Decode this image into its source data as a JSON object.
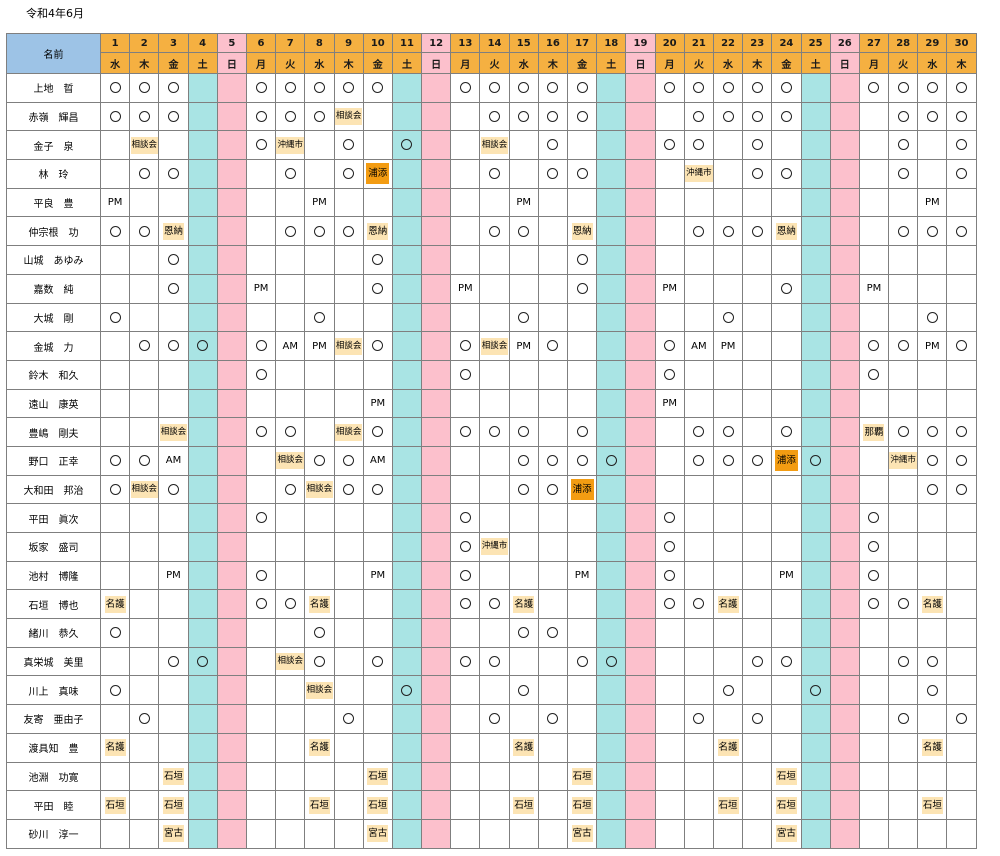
{
  "page_title": "令和4年6月",
  "header_label": "名前",
  "days": [
    {
      "n": "1",
      "w": "水",
      "t": "w"
    },
    {
      "n": "2",
      "w": "木",
      "t": "w"
    },
    {
      "n": "3",
      "w": "金",
      "t": "w"
    },
    {
      "n": "4",
      "w": "土",
      "t": "sat"
    },
    {
      "n": "5",
      "w": "日",
      "t": "sun"
    },
    {
      "n": "6",
      "w": "月",
      "t": "w"
    },
    {
      "n": "7",
      "w": "火",
      "t": "w"
    },
    {
      "n": "8",
      "w": "水",
      "t": "w"
    },
    {
      "n": "9",
      "w": "木",
      "t": "w"
    },
    {
      "n": "10",
      "w": "金",
      "t": "w"
    },
    {
      "n": "11",
      "w": "土",
      "t": "sat"
    },
    {
      "n": "12",
      "w": "日",
      "t": "sun"
    },
    {
      "n": "13",
      "w": "月",
      "t": "w"
    },
    {
      "n": "14",
      "w": "火",
      "t": "w"
    },
    {
      "n": "15",
      "w": "水",
      "t": "w"
    },
    {
      "n": "16",
      "w": "木",
      "t": "w"
    },
    {
      "n": "17",
      "w": "金",
      "t": "w"
    },
    {
      "n": "18",
      "w": "土",
      "t": "sat"
    },
    {
      "n": "19",
      "w": "日",
      "t": "sun"
    },
    {
      "n": "20",
      "w": "月",
      "t": "w"
    },
    {
      "n": "21",
      "w": "火",
      "t": "w"
    },
    {
      "n": "22",
      "w": "水",
      "t": "w"
    },
    {
      "n": "23",
      "w": "木",
      "t": "w"
    },
    {
      "n": "24",
      "w": "金",
      "t": "w"
    },
    {
      "n": "25",
      "w": "土",
      "t": "sat"
    },
    {
      "n": "26",
      "w": "日",
      "t": "sun"
    },
    {
      "n": "27",
      "w": "月",
      "t": "w"
    },
    {
      "n": "28",
      "w": "火",
      "t": "w"
    },
    {
      "n": "29",
      "w": "水",
      "t": "w"
    },
    {
      "n": "30",
      "w": "木",
      "t": "w"
    }
  ],
  "colors": {
    "header_orange": "#f5b041",
    "saturday_teal": "#a9e4e4",
    "sunday_pink": "#fcc0cc",
    "name_header_blue": "#9dc3e6",
    "tag_beige": "#fce4b4",
    "tag_orange": "#f39c12"
  },
  "rows": [
    {
      "name": "上地　晢",
      "cells": {
        "1": "○",
        "2": "○",
        "3": "○",
        "6": "○",
        "7": "○",
        "8": "○",
        "9": "○",
        "10": "○",
        "13": "○",
        "14": "○",
        "15": "○",
        "16": "○",
        "17": "○",
        "20": "○",
        "21": "○",
        "22": "○",
        "23": "○",
        "24": "○",
        "27": "○",
        "28": "○",
        "29": "○",
        "30": "○"
      }
    },
    {
      "name": "赤嶺　輝昌",
      "cells": {
        "1": "○",
        "2": "○",
        "3": "○",
        "6": "○",
        "7": "○",
        "8": "○",
        "9": "相談会",
        "14": "○",
        "15": "○",
        "16": "○",
        "17": "○",
        "21": "○",
        "22": "○",
        "23": "○",
        "24": "○",
        "28": "○",
        "29": "○",
        "30": "○"
      }
    },
    {
      "name": "金子　泉",
      "cells": {
        "2": "相談会",
        "6": "○",
        "7": "沖縄市",
        "9": "○",
        "11": "○",
        "14": "相談会",
        "16": "○",
        "20": "○",
        "21": "○",
        "23": "○",
        "28": "○",
        "30": "○"
      }
    },
    {
      "name": "林　玲",
      "cells": {
        "2": "○",
        "3": "○",
        "7": "○",
        "9": "○",
        "10": "浦添",
        "14": "○",
        "16": "○",
        "17": "○",
        "21": "沖縄市",
        "23": "○",
        "24": "○",
        "28": "○",
        "30": "○"
      }
    },
    {
      "name": "平良　豊",
      "cells": {
        "1": "PM",
        "8": "PM",
        "15": "PM",
        "29": "PM"
      }
    },
    {
      "name": "仲宗根　功",
      "cells": {
        "1": "○",
        "2": "○",
        "3": "恩納",
        "7": "○",
        "8": "○",
        "9": "○",
        "10": "恩納",
        "14": "○",
        "15": "○",
        "17": "恩納",
        "21": "○",
        "22": "○",
        "23": "○",
        "24": "恩納",
        "28": "○",
        "29": "○",
        "30": "○"
      }
    },
    {
      "name": "山城　あゆみ",
      "cells": {
        "3": "○",
        "10": "○",
        "17": "○"
      }
    },
    {
      "name": "嘉数　純",
      "cells": {
        "3": "○",
        "6": "PM",
        "10": "○",
        "13": "PM",
        "17": "○",
        "20": "PM",
        "24": "○",
        "27": "PM"
      }
    },
    {
      "name": "大城　剛",
      "cells": {
        "1": "○",
        "8": "○",
        "15": "○",
        "22": "○",
        "29": "○"
      }
    },
    {
      "name": "金城　力",
      "cells": {
        "2": "○",
        "3": "○",
        "4": "○",
        "6": "○",
        "7": "AM",
        "8": "PM",
        "9": "相談会",
        "10": "○",
        "13": "○",
        "14": "相談会",
        "15": "PM",
        "16": "○",
        "20": "○",
        "21": "AM",
        "22": "PM",
        "27": "○",
        "28": "○",
        "29": "PM",
        "30": "○"
      }
    },
    {
      "name": "鈴木　和久",
      "cells": {
        "6": "○",
        "13": "○",
        "20": "○",
        "27": "○"
      }
    },
    {
      "name": "遠山　康英",
      "cells": {
        "10": "PM",
        "20": "PM"
      }
    },
    {
      "name": "豊嶋　剛夫",
      "cells": {
        "3": "相談会",
        "6": "○",
        "7": "○",
        "9": "相談会",
        "10": "○",
        "13": "○",
        "14": "○",
        "15": "○",
        "17": "○",
        "21": "○",
        "22": "○",
        "24": "○",
        "27": "那覇",
        "28": "○",
        "29": "○",
        "30": "○"
      }
    },
    {
      "name": "野口　正幸",
      "cells": {
        "1": "○",
        "2": "○",
        "3": "AM",
        "7": "相談会",
        "8": "○",
        "9": "○",
        "10": "AM",
        "15": "○",
        "16": "○",
        "17": "○",
        "18": "○",
        "21": "○",
        "22": "○",
        "23": "○",
        "24": "浦添",
        "25": "○",
        "28": "沖縄市",
        "29": "○",
        "30": "○"
      }
    },
    {
      "name": "大和田　邦治",
      "cells": {
        "1": "○",
        "2": "相談会",
        "3": "○",
        "7": "○",
        "8": "相談会",
        "9": "○",
        "10": "○",
        "15": "○",
        "16": "○",
        "17": "浦添",
        "29": "○",
        "30": "○"
      }
    },
    {
      "name": "平田　眞次",
      "cells": {
        "6": "○",
        "13": "○",
        "20": "○",
        "27": "○"
      }
    },
    {
      "name": "坂家　盛司",
      "cells": {
        "13": "○",
        "14": "沖縄市",
        "20": "○",
        "27": "○"
      }
    },
    {
      "name": "池村　博隆",
      "cells": {
        "3": "PM",
        "6": "○",
        "10": "PM",
        "13": "○",
        "17": "PM",
        "20": "○",
        "24": "PM",
        "27": "○"
      }
    },
    {
      "name": "石垣　博也",
      "cells": {
        "1": "名護",
        "6": "○",
        "7": "○",
        "8": "名護",
        "13": "○",
        "14": "○",
        "15": "名護",
        "20": "○",
        "21": "○",
        "22": "名護",
        "27": "○",
        "28": "○",
        "29": "名護"
      }
    },
    {
      "name": "緒川　恭久",
      "cells": {
        "1": "○",
        "8": "○",
        "15": "○",
        "16": "○"
      }
    },
    {
      "name": "真栄城　美里",
      "cells": {
        "3": "○",
        "4": "○",
        "7": "相談会",
        "8": "○",
        "10": "○",
        "13": "○",
        "14": "○",
        "17": "○",
        "18": "○",
        "23": "○",
        "24": "○",
        "28": "○",
        "29": "○"
      }
    },
    {
      "name": "川上　真味",
      "cells": {
        "1": "○",
        "8": "相談会",
        "11": "○",
        "15": "○",
        "22": "○",
        "25": "○",
        "29": "○"
      }
    },
    {
      "name": "友寄　亜由子",
      "cells": {
        "2": "○",
        "9": "○",
        "14": "○",
        "16": "○",
        "21": "○",
        "23": "○",
        "28": "○",
        "30": "○"
      }
    },
    {
      "name": "渡具知　豊",
      "cells": {
        "1": "名護",
        "8": "名護",
        "15": "名護",
        "22": "名護",
        "29": "名護"
      }
    },
    {
      "name": "池淵　功寛",
      "cells": {
        "3": "石垣",
        "10": "石垣",
        "17": "石垣",
        "24": "石垣"
      }
    },
    {
      "name": "平田　睦",
      "cells": {
        "1": "石垣",
        "3": "石垣",
        "8": "石垣",
        "10": "石垣",
        "15": "石垣",
        "17": "石垣",
        "22": "石垣",
        "24": "石垣",
        "29": "石垣"
      }
    },
    {
      "name": "砂川　淳一",
      "cells": {
        "3": "宮古",
        "10": "宮古",
        "17": "宮古",
        "24": "宮古"
      }
    }
  ]
}
